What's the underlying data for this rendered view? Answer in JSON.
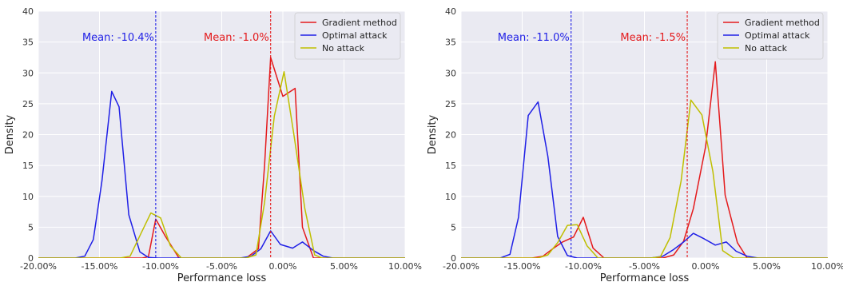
{
  "chart_data": [
    {
      "type": "line",
      "xlabel": "Performance loss",
      "ylabel": "Density",
      "xlim": [
        -20,
        10
      ],
      "ylim": [
        0,
        40
      ],
      "x_ticks": [
        "-20.00%",
        "-15.00%",
        "-10.00%",
        "-5.00%",
        "0.00%",
        "5.00%",
        "10.00%"
      ],
      "x_tick_values": [
        -20,
        -15,
        -10,
        -5,
        0,
        5,
        10
      ],
      "y_ticks": [
        "0",
        "5",
        "10",
        "15",
        "20",
        "25",
        "30",
        "35",
        "40"
      ],
      "y_tick_values": [
        0,
        5,
        10,
        15,
        20,
        25,
        30,
        35,
        40
      ],
      "grid": true,
      "legend_position": "top-right",
      "series": [
        {
          "name": "Gradient method",
          "color": "#e41a1c",
          "x": [
            -20,
            -11.5,
            -11,
            -10.4,
            -9.6,
            -8.5,
            -3,
            -2,
            -1.5,
            -1,
            0,
            1,
            1.6,
            2.5,
            3,
            10
          ],
          "y": [
            0,
            0,
            0.2,
            6.3,
            3.5,
            0,
            0,
            1.5,
            15,
            32.5,
            26.2,
            27.5,
            5,
            0,
            0,
            0
          ]
        },
        {
          "name": "Optimal attack",
          "color": "#1f1fe6",
          "x": [
            -20,
            -17,
            -16.2,
            -15.5,
            -14.8,
            -14,
            -13.4,
            -12.6,
            -11.7,
            -11,
            -10.2,
            -9.4,
            -8.5,
            -3.5,
            -2.6,
            -1.8,
            -1,
            -0.2,
            0.8,
            1.6,
            2.5,
            3.3,
            4.1,
            5,
            10
          ],
          "y": [
            0,
            0,
            0.3,
            3,
            12.5,
            27,
            24.5,
            7,
            1,
            0.1,
            0,
            0,
            0,
            0,
            0.3,
            1.5,
            4.4,
            2.2,
            1.6,
            2.6,
            1.2,
            0.3,
            0,
            0,
            0
          ],
          "x_fix": true
        },
        {
          "name": "No attack",
          "color": "#bfbf00",
          "x": [
            -20,
            -13.3,
            -12.5,
            -11.6,
            -10.8,
            -10,
            -9.2,
            -8.3,
            -3,
            -2.2,
            -1.5,
            -0.7,
            0.1,
            0.9,
            1.8,
            2.6,
            3.2,
            10
          ],
          "y": [
            0,
            0,
            0.3,
            4,
            7.3,
            6.5,
            2,
            0,
            0,
            0.5,
            9,
            23,
            30.2,
            20,
            8,
            0.5,
            0,
            0
          ]
        }
      ],
      "mean_lines": [
        {
          "label": "Mean: -10.4%",
          "value": -10.4,
          "color": "#1f1fe6"
        },
        {
          "label": "Mean: -1.0%",
          "value": -1.0,
          "color": "#e41a1c"
        }
      ]
    },
    {
      "type": "line",
      "xlabel": "Performance loss",
      "ylabel": "Density",
      "xlim": [
        -20,
        10
      ],
      "ylim": [
        0,
        40
      ],
      "x_ticks": [
        "-20.00%",
        "-15.00%",
        "-10.00%",
        "-5.00%",
        "0.00%",
        "5.00%",
        "10.00%"
      ],
      "x_tick_values": [
        -20,
        -15,
        -10,
        -5,
        0,
        5,
        10
      ],
      "y_ticks": [
        "0",
        "5",
        "10",
        "15",
        "20",
        "25",
        "30",
        "35",
        "40"
      ],
      "y_tick_values": [
        0,
        5,
        10,
        15,
        20,
        25,
        30,
        35,
        40
      ],
      "grid": true,
      "legend_position": "top-right",
      "series": [
        {
          "name": "Gradient method",
          "color": "#e41a1c",
          "x": [
            -20,
            -14.2,
            -13.3,
            -12.5,
            -11.7,
            -10.8,
            -10,
            -9.2,
            -8.3,
            -3.5,
            -2.6,
            -1.8,
            -1,
            0,
            0.8,
            1.6,
            2.6,
            3.4,
            10
          ],
          "y": [
            0,
            0,
            0.3,
            1.5,
            2.6,
            3.4,
            6.6,
            1.6,
            0,
            0,
            0.5,
            2.7,
            8,
            18,
            31.8,
            10.2,
            2.5,
            0,
            0
          ],
          "x_fix": true
        },
        {
          "name": "Optimal attack",
          "color": "#1f1fe6",
          "x": [
            -20,
            -16.8,
            -16,
            -15.3,
            -14.5,
            -13.7,
            -12.9,
            -12.1,
            -11.3,
            -10.5,
            -9.7,
            -8.8,
            -4.5,
            -3.5,
            -2.6,
            -1.8,
            -1,
            -0.1,
            0.8,
            1.7,
            2.5,
            3.4,
            4.3,
            10
          ],
          "y": [
            0,
            0,
            0.6,
            6.6,
            23.1,
            25.3,
            16.5,
            3.5,
            0.4,
            0,
            0,
            0,
            0,
            0.3,
            1.4,
            2.6,
            4,
            3.1,
            2.1,
            2.6,
            1.1,
            0.3,
            0,
            0
          ]
        },
        {
          "name": "No attack",
          "color": "#bfbf00",
          "x": [
            -20,
            -13.7,
            -12.9,
            -12.1,
            -11.3,
            -10.5,
            -9.7,
            -8.8,
            -4.5,
            -3.7,
            -2.9,
            -2,
            -1.2,
            -0.3,
            0.6,
            1.4,
            2.3,
            3.1,
            10
          ],
          "y": [
            0,
            0,
            0.5,
            2.5,
            5.3,
            5.4,
            2,
            0,
            0,
            0.2,
            3.3,
            12.5,
            25.6,
            23.2,
            14,
            1.2,
            0,
            0,
            0
          ]
        }
      ],
      "mean_lines": [
        {
          "label": "Mean: -11.0%",
          "value": -11.0,
          "color": "#1f1fe6"
        },
        {
          "label": "Mean: -1.5%",
          "value": -1.5,
          "color": "#e41a1c"
        }
      ]
    }
  ]
}
